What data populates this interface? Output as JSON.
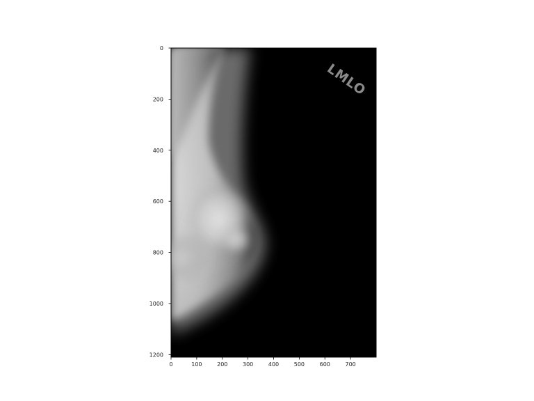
{
  "figure": {
    "background": "#ffffff",
    "image_background": "#000000",
    "view_label": "LMLO"
  },
  "axes": {
    "x": {
      "range": [
        0,
        800
      ],
      "ticks": [
        0,
        100,
        200,
        300,
        400,
        500,
        600,
        700
      ],
      "tick_labels": [
        "0",
        "100",
        "200",
        "300",
        "400",
        "500",
        "600",
        "700"
      ]
    },
    "y": {
      "range": [
        0,
        1210
      ],
      "inverted": true,
      "ticks": [
        0,
        200,
        400,
        600,
        800,
        1000,
        1200
      ],
      "tick_labels": [
        "0",
        "200",
        "400",
        "600",
        "800",
        "1000",
        "1200"
      ]
    }
  }
}
